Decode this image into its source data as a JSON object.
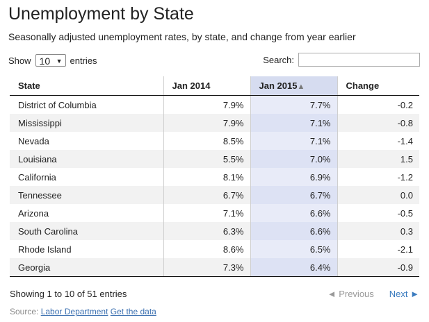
{
  "title": "Unemployment by State",
  "subtitle": "Seasonally adjusted unemployment rates, by state, and change from year earlier",
  "length": {
    "show_label": "Show",
    "value": "10",
    "entries_label": "entries"
  },
  "search": {
    "label": "Search:",
    "value": ""
  },
  "columns": {
    "state": "State",
    "jan2014": "Jan 2014",
    "jan2015": "Jan 2015",
    "sort_arrow": "▲",
    "change": "Change"
  },
  "rows": [
    {
      "state": "District of Columbia",
      "jan2014": "7.9%",
      "jan2015": "7.7%",
      "change": "-0.2"
    },
    {
      "state": "Mississippi",
      "jan2014": "7.9%",
      "jan2015": "7.1%",
      "change": "-0.8"
    },
    {
      "state": "Nevada",
      "jan2014": "8.5%",
      "jan2015": "7.1%",
      "change": "-1.4"
    },
    {
      "state": "Louisiana",
      "jan2014": "5.5%",
      "jan2015": "7.0%",
      "change": "1.5"
    },
    {
      "state": "California",
      "jan2014": "8.1%",
      "jan2015": "6.9%",
      "change": "-1.2"
    },
    {
      "state": "Tennessee",
      "jan2014": "6.7%",
      "jan2015": "6.7%",
      "change": "0.0"
    },
    {
      "state": "Arizona",
      "jan2014": "7.1%",
      "jan2015": "6.6%",
      "change": "-0.5"
    },
    {
      "state": "South Carolina",
      "jan2014": "6.3%",
      "jan2015": "6.6%",
      "change": "0.3"
    },
    {
      "state": "Rhode Island",
      "jan2014": "8.6%",
      "jan2015": "6.5%",
      "change": "-2.1"
    },
    {
      "state": "Georgia",
      "jan2014": "7.3%",
      "jan2015": "6.4%",
      "change": "-0.9"
    }
  ],
  "info": "Showing 1 to 10 of 51 entries",
  "pager": {
    "previous": "◄ Previous",
    "next": "Next ►"
  },
  "source": {
    "label": "Source:",
    "link1": "Labor Department",
    "link2": "Get the data"
  },
  "colors": {
    "sorted_header": "#d6dcf0",
    "sorted_column": "#e8ebf8",
    "link": "#3a7bbf"
  }
}
